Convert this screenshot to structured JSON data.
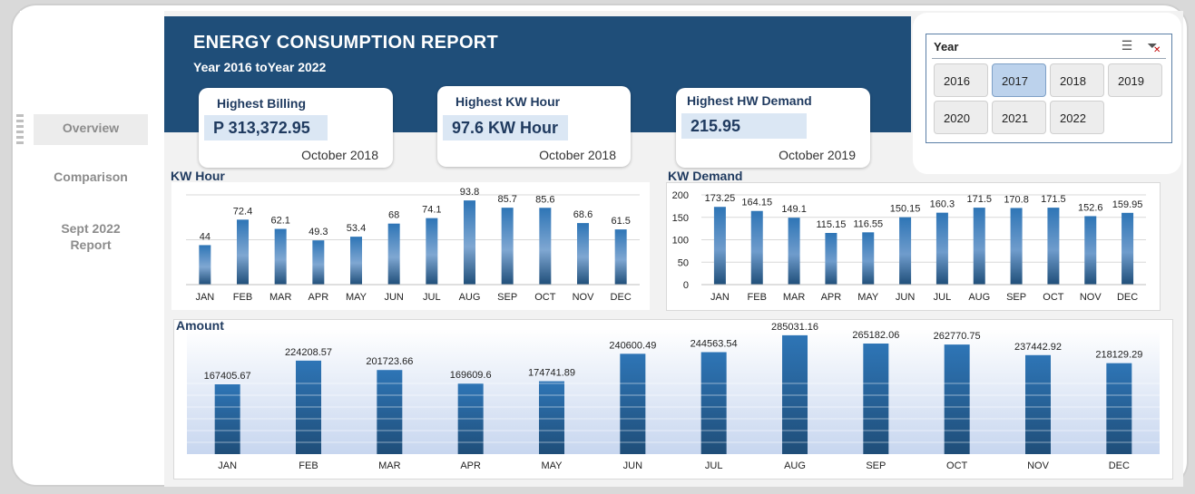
{
  "nav": {
    "overview": "Overview",
    "comparison": "Comparison",
    "sept_report_line1": "Sept 2022",
    "sept_report_line2": "Report"
  },
  "header": {
    "title": "ENERGY CONSUMPTION REPORT",
    "subtitle": "Year 2016 toYear 2022"
  },
  "kpis": {
    "billing": {
      "label": "Highest Billing",
      "value": "P 313,372.95",
      "date": "October 2018"
    },
    "kwh": {
      "label": "Highest KW Hour",
      "value": "97.6 KW Hour",
      "date": "October 2018"
    },
    "demand": {
      "label": "Highest HW Demand",
      "value": "215.95",
      "date": "October 2019"
    }
  },
  "slicer": {
    "title": "Year",
    "multiselect_icon": "multi-select-icon",
    "clear_icon": "clear-filter-icon",
    "years": [
      "2016",
      "2017",
      "2018",
      "2019",
      "2020",
      "2021",
      "2022"
    ],
    "selected": "2017"
  },
  "colors": {
    "banner": "#1f4e79",
    "bar_top": "#2e75b6",
    "bar_bottom": "#1f4e79"
  },
  "chart_data": [
    {
      "type": "bar",
      "title": "KW Hour",
      "categories": [
        "JAN",
        "FEB",
        "MAR",
        "APR",
        "MAY",
        "JUN",
        "JUL",
        "AUG",
        "SEP",
        "OCT",
        "NOV",
        "DEC"
      ],
      "values": [
        44,
        72.4,
        62.1,
        49.3,
        53.4,
        68,
        74.1,
        93.8,
        85.7,
        85.6,
        68.6,
        61.5
      ],
      "labels": [
        "44",
        "72.4",
        "62.1",
        "49.3",
        "53.4",
        "68",
        "74.1",
        "93.8",
        "85.7",
        "85.6",
        "68.6",
        "61.5"
      ],
      "ylim": [
        0,
        100
      ],
      "grid": true
    },
    {
      "type": "bar",
      "title": "KW Demand",
      "categories": [
        "JAN",
        "FEB",
        "MAR",
        "APR",
        "MAY",
        "JUN",
        "JUL",
        "AUG",
        "SEP",
        "OCT",
        "NOV",
        "DEC"
      ],
      "values": [
        173.25,
        164.15,
        149.1,
        115.15,
        116.55,
        150.15,
        160.3,
        171.5,
        170.8,
        171.5,
        152.6,
        159.95
      ],
      "labels": [
        "173.25",
        "164.15",
        "149.1",
        "115.15",
        "116.55",
        "150.15",
        "160.3",
        "171.5",
        "170.8",
        "171.5",
        "152.6",
        "159.95"
      ],
      "yticks": [
        "200",
        "150",
        "100",
        "50",
        "0"
      ],
      "ylim": [
        0,
        200
      ],
      "grid": true
    },
    {
      "type": "bar",
      "title": "Amount",
      "categories": [
        "JAN",
        "FEB",
        "MAR",
        "APR",
        "MAY",
        "JUN",
        "JUL",
        "AUG",
        "SEP",
        "OCT",
        "NOV",
        "DEC"
      ],
      "values": [
        167405.67,
        224208.57,
        201723.66,
        169609.6,
        174741.89,
        240600.49,
        244563.54,
        285031.16,
        265182.06,
        262770.75,
        237442.92,
        218129.29
      ],
      "labels": [
        "167405.67",
        "224208.57",
        "201723.66",
        "169609.6",
        "174741.89",
        "240600.49",
        "244563.54",
        "285031.16",
        "265182.06",
        "262770.75",
        "237442.92",
        "218129.29"
      ],
      "ylim": [
        0,
        300000
      ],
      "grid": false
    }
  ]
}
